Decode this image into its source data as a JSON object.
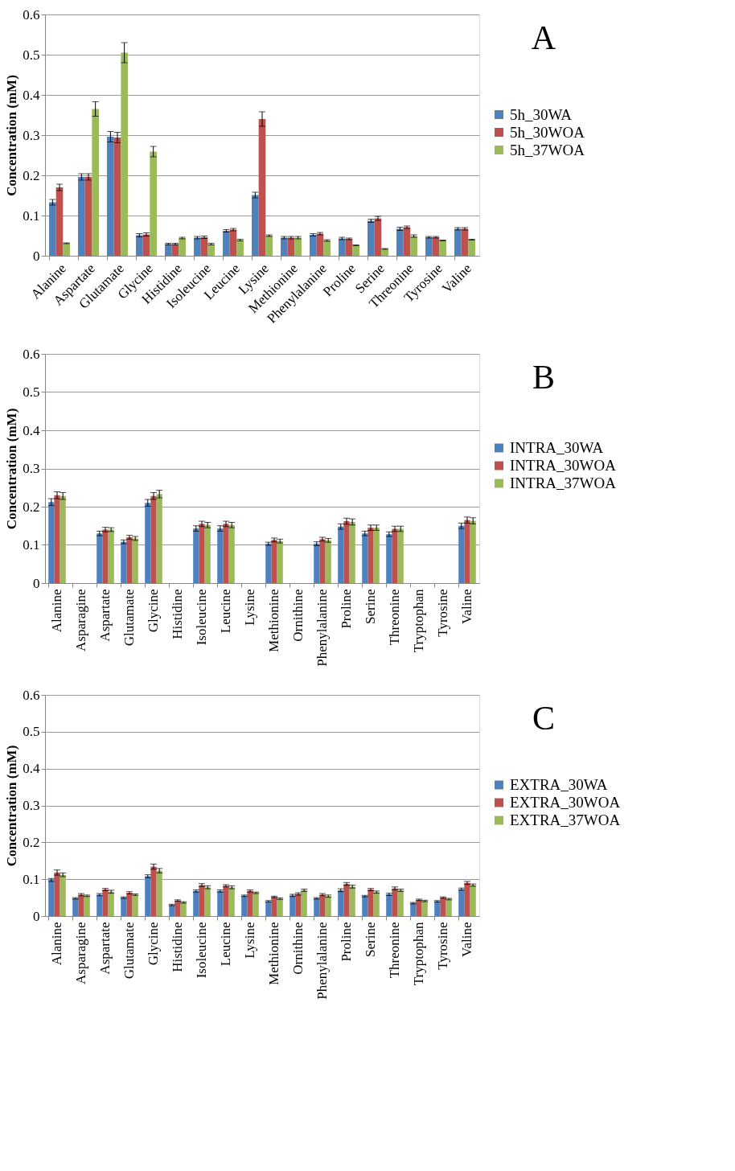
{
  "chart_data": [
    {
      "type": "bar",
      "annotations": [
        "A"
      ],
      "ylabel": "Concentration (mM)",
      "ylim": [
        0,
        0.6
      ],
      "yticks": [
        0,
        0.1,
        0.2,
        0.3,
        0.4,
        0.5,
        0.6
      ],
      "grid": "y",
      "legend": "right",
      "categories": [
        "Alanine",
        "Aspartate",
        "Glutamate",
        "Glycine",
        "Histidine",
        "Isoleucine",
        "Leucine",
        "Lysine",
        "Methionine",
        "Phenylalanine",
        "Proline",
        "Serine",
        "Threonine",
        "Tyrosine",
        "Valine"
      ],
      "series": [
        {
          "name": "5h_30WA",
          "color": "#4f81bd",
          "values": [
            0.133,
            0.196,
            0.296,
            0.051,
            0.029,
            0.045,
            0.062,
            0.151,
            0.045,
            0.052,
            0.043,
            0.087,
            0.067,
            0.046,
            0.067
          ],
          "errors": [
            0.007,
            0.008,
            0.013,
            0.004,
            0.002,
            0.003,
            0.003,
            0.007,
            0.003,
            0.003,
            0.003,
            0.004,
            0.004,
            0.002,
            0.003
          ]
        },
        {
          "name": "5h_30WOA",
          "color": "#c0504d",
          "values": [
            0.17,
            0.196,
            0.294,
            0.053,
            0.029,
            0.046,
            0.065,
            0.34,
            0.045,
            0.055,
            0.042,
            0.093,
            0.071,
            0.046,
            0.067
          ],
          "errors": [
            0.008,
            0.008,
            0.013,
            0.004,
            0.002,
            0.003,
            0.003,
            0.018,
            0.003,
            0.003,
            0.002,
            0.005,
            0.003,
            0.002,
            0.003
          ]
        },
        {
          "name": "5h_37WOA",
          "color": "#9bbb59",
          "values": [
            0.031,
            0.365,
            0.505,
            0.259,
            0.044,
            0.029,
            0.039,
            0.05,
            0.045,
            0.038,
            0.026,
            0.017,
            0.049,
            0.038,
            0.04
          ],
          "errors": [
            0.001,
            0.018,
            0.025,
            0.013,
            0.002,
            0.002,
            0.002,
            0.002,
            0.003,
            0.002,
            0.001,
            0.001,
            0.003,
            0.001,
            0.001
          ]
        }
      ]
    },
    {
      "type": "bar",
      "annotations": [
        "B"
      ],
      "ylabel": "Concentration (mM)",
      "ylim": [
        0,
        0.6
      ],
      "yticks": [
        0,
        0.1,
        0.2,
        0.3,
        0.4,
        0.5,
        0.6
      ],
      "grid": "y",
      "legend": "right",
      "categories": [
        "Alanine",
        "Asparagine",
        "Aspartate",
        "Glutamate",
        "Glycine",
        "Histidine",
        "Isoleucine",
        "Leucine",
        "Lysine",
        "Methionine",
        "Ornithine",
        "Phenylalanine",
        "Proline",
        "Serine",
        "Threonine",
        "Tryptophan",
        "Tyrosine",
        "Valine"
      ],
      "series": [
        {
          "name": "INTRA_30WA",
          "color": "#4f81bd",
          "values": [
            0.212,
            null,
            0.13,
            0.108,
            0.21,
            null,
            0.143,
            0.143,
            null,
            0.103,
            null,
            0.103,
            0.148,
            0.13,
            0.128,
            null,
            null,
            0.15
          ],
          "errors": [
            0.009,
            null,
            0.006,
            0.005,
            0.009,
            null,
            0.007,
            0.007,
            null,
            0.004,
            null,
            0.005,
            0.007,
            0.006,
            0.006,
            null,
            null,
            0.007
          ]
        },
        {
          "name": "INTRA_30WOA",
          "color": "#c0504d",
          "values": [
            0.23,
            null,
            0.14,
            0.12,
            0.228,
            null,
            0.155,
            0.155,
            null,
            0.113,
            null,
            0.115,
            0.162,
            0.145,
            0.142,
            null,
            null,
            0.165
          ],
          "errors": [
            0.009,
            null,
            0.006,
            0.005,
            0.009,
            null,
            0.007,
            0.007,
            null,
            0.005,
            null,
            0.005,
            0.008,
            0.007,
            0.007,
            null,
            null,
            0.008
          ]
        },
        {
          "name": "INTRA_37WOA",
          "color": "#9bbb59",
          "values": [
            0.228,
            null,
            0.14,
            0.117,
            0.233,
            null,
            0.152,
            0.152,
            null,
            0.11,
            null,
            0.112,
            0.16,
            0.145,
            0.142,
            null,
            null,
            0.163
          ],
          "errors": [
            0.009,
            null,
            0.005,
            0.005,
            0.01,
            null,
            0.007,
            0.007,
            null,
            0.005,
            null,
            0.005,
            0.008,
            0.007,
            0.007,
            null,
            null,
            0.008
          ]
        }
      ]
    },
    {
      "type": "bar",
      "annotations": [
        "C"
      ],
      "ylabel": "Concentration (mM)",
      "ylim": [
        0,
        0.6
      ],
      "yticks": [
        0,
        0.1,
        0.2,
        0.3,
        0.4,
        0.5,
        0.6
      ],
      "grid": "y",
      "legend": "right",
      "categories": [
        "Alanine",
        "Asparagine",
        "Aspartate",
        "Glutamate",
        "Glycine",
        "Histidine",
        "Isoleucine",
        "Leucine",
        "Lysine",
        "Methionine",
        "Ornithine",
        "Phenylalanine",
        "Proline",
        "Serine",
        "Threonine",
        "Tryptophan",
        "Tyrosine",
        "Valine"
      ],
      "series": [
        {
          "name": "EXTRA_30WA",
          "color": "#4f81bd",
          "values": [
            0.098,
            0.048,
            0.058,
            0.05,
            0.108,
            0.03,
            0.068,
            0.068,
            0.055,
            0.04,
            0.056,
            0.048,
            0.07,
            0.054,
            0.059,
            0.035,
            0.04,
            0.073
          ],
          "errors": [
            0.004,
            0.002,
            0.003,
            0.002,
            0.004,
            0.002,
            0.003,
            0.003,
            0.002,
            0.002,
            0.003,
            0.002,
            0.004,
            0.002,
            0.003,
            0.002,
            0.002,
            0.003
          ]
        },
        {
          "name": "EXTRA_30WOA",
          "color": "#c0504d",
          "values": [
            0.118,
            0.058,
            0.072,
            0.063,
            0.134,
            0.042,
            0.084,
            0.082,
            0.068,
            0.052,
            0.06,
            0.058,
            0.087,
            0.072,
            0.075,
            0.044,
            0.05,
            0.09
          ],
          "errors": [
            0.007,
            0.003,
            0.003,
            0.003,
            0.007,
            0.002,
            0.004,
            0.003,
            0.003,
            0.002,
            0.003,
            0.003,
            0.004,
            0.003,
            0.004,
            0.002,
            0.002,
            0.004
          ]
        },
        {
          "name": "EXTRA_37WOA",
          "color": "#9bbb59",
          "values": [
            0.112,
            0.055,
            0.066,
            0.058,
            0.123,
            0.037,
            0.078,
            0.078,
            0.063,
            0.047,
            0.07,
            0.054,
            0.08,
            0.065,
            0.07,
            0.041,
            0.046,
            0.084
          ],
          "errors": [
            0.005,
            0.002,
            0.004,
            0.002,
            0.006,
            0.002,
            0.004,
            0.004,
            0.002,
            0.002,
            0.003,
            0.003,
            0.004,
            0.003,
            0.003,
            0.002,
            0.002,
            0.003
          ]
        }
      ]
    }
  ]
}
